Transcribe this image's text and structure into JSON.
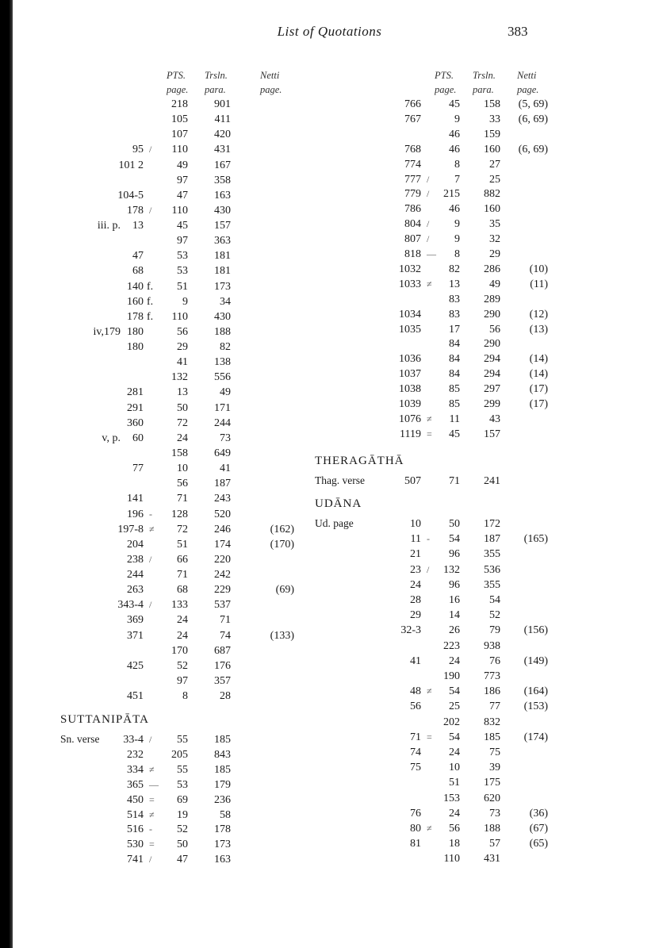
{
  "header": {
    "title": "List of Quotations",
    "page_number": "383"
  },
  "column_headers": {
    "pts": [
      "PTS.",
      "page."
    ],
    "trsl": [
      "Trsln.",
      "para."
    ],
    "netti": [
      "Netti",
      "page."
    ]
  },
  "left_rows": [
    [
      "",
      "",
      "",
      "218",
      "901",
      ""
    ],
    [
      "",
      "",
      "",
      "105",
      "411",
      ""
    ],
    [
      "",
      "",
      "",
      "107",
      "420",
      ""
    ],
    [
      "",
      "95",
      "/",
      "110",
      "431",
      ""
    ],
    [
      "",
      "101 2",
      "",
      "49",
      "167",
      ""
    ],
    [
      "",
      "",
      "",
      "97",
      "358",
      ""
    ],
    [
      "",
      "104-5",
      "",
      "47",
      "163",
      ""
    ],
    [
      "",
      "178",
      "/",
      "110",
      "430",
      ""
    ],
    [
      "iii. p.",
      "13",
      "",
      "45",
      "157",
      ""
    ],
    [
      "",
      "",
      "",
      "97",
      "363",
      ""
    ],
    [
      "",
      "47",
      "",
      "53",
      "181",
      ""
    ],
    [
      "",
      "68",
      "",
      "53",
      "181",
      ""
    ],
    [
      "",
      "140",
      "f.",
      "51",
      "173",
      ""
    ],
    [
      "",
      "160",
      "f.",
      "9",
      "34",
      ""
    ],
    [
      "",
      "178",
      "f.",
      "110",
      "430",
      ""
    ],
    [
      "iv,179",
      "180",
      "",
      "56",
      "188",
      ""
    ],
    [
      "",
      "180",
      "",
      "29",
      "82",
      ""
    ],
    [
      "",
      "",
      "",
      "41",
      "138",
      ""
    ],
    [
      "",
      "",
      "",
      "132",
      "556",
      ""
    ],
    [
      "",
      "281",
      "",
      "13",
      "49",
      ""
    ],
    [
      "",
      "291",
      "",
      "50",
      "171",
      ""
    ],
    [
      "",
      "360",
      "",
      "72",
      "244",
      ""
    ],
    [
      "v, p.",
      "60",
      "",
      "24",
      "73",
      ""
    ],
    [
      "",
      "",
      "",
      "158",
      "649",
      ""
    ],
    [
      "",
      "77",
      "",
      "10",
      "41",
      ""
    ],
    [
      "",
      "",
      "",
      "56",
      "187",
      ""
    ],
    [
      "",
      "141",
      "",
      "71",
      "243",
      ""
    ],
    [
      "",
      "196",
      "-",
      "128",
      "520",
      ""
    ],
    [
      "",
      "197-8",
      "≠",
      "72",
      "246",
      "(162)"
    ],
    [
      "",
      "204",
      "",
      "51",
      "174",
      "(170)"
    ],
    [
      "",
      "238",
      "/",
      "66",
      "220",
      ""
    ],
    [
      "",
      "244",
      "",
      "71",
      "242",
      ""
    ],
    [
      "",
      "263",
      "",
      "68",
      "229",
      "(69)"
    ],
    [
      "",
      "343-4",
      "/",
      "133",
      "537",
      ""
    ],
    [
      "",
      "369",
      "",
      "24",
      "71",
      ""
    ],
    [
      "",
      "371",
      "",
      "24",
      "74",
      "(133)"
    ],
    [
      "",
      "",
      "",
      "170",
      "687",
      ""
    ],
    [
      "",
      "425",
      "",
      "52",
      "176",
      ""
    ],
    [
      "",
      "",
      "",
      "97",
      "357",
      ""
    ],
    [
      "",
      "451",
      "",
      "8",
      "28",
      ""
    ]
  ],
  "suttanipata": {
    "heading": "SUTTANIPĀTA",
    "label": "Sn. verse",
    "rows": [
      [
        "33-4",
        "/",
        "55",
        "185",
        ""
      ],
      [
        "232",
        "",
        "205",
        "843",
        ""
      ],
      [
        "334",
        "≠",
        "55",
        "185",
        ""
      ],
      [
        "365",
        "—",
        "53",
        "179",
        ""
      ],
      [
        "450",
        "=",
        "69",
        "236",
        ""
      ],
      [
        "514",
        "≠",
        "19",
        "58",
        ""
      ],
      [
        "516",
        "-",
        "52",
        "178",
        ""
      ],
      [
        "530",
        "=",
        "50",
        "173",
        ""
      ],
      [
        "741",
        "/",
        "47",
        "163",
        ""
      ]
    ]
  },
  "right_rows": [
    [
      "766",
      "",
      "45",
      "158",
      "(5, 69)"
    ],
    [
      "767",
      "",
      "9",
      "33",
      "(6, 69)"
    ],
    [
      "",
      "",
      "46",
      "159",
      ""
    ],
    [
      "768",
      "",
      "46",
      "160",
      "(6, 69)"
    ],
    [
      "774",
      "",
      "8",
      "27",
      ""
    ],
    [
      "777",
      "/",
      "7",
      "25",
      ""
    ],
    [
      "779",
      "/",
      "215",
      "882",
      ""
    ],
    [
      "786",
      "",
      "46",
      "160",
      ""
    ],
    [
      "804",
      "/",
      "9",
      "35",
      ""
    ],
    [
      "807",
      "/",
      "9",
      "32",
      ""
    ],
    [
      "818",
      "—",
      "8",
      "29",
      ""
    ],
    [
      "1032",
      "",
      "82",
      "286",
      "(10)"
    ],
    [
      "1033",
      "≠",
      "13",
      "49",
      "(11)"
    ],
    [
      "",
      "",
      "83",
      "289",
      ""
    ],
    [
      "1034",
      "",
      "83",
      "290",
      "(12)"
    ],
    [
      "1035",
      "",
      "17",
      "56",
      "(13)"
    ],
    [
      "",
      "",
      "84",
      "290",
      ""
    ],
    [
      "1036",
      "",
      "84",
      "294",
      "(14)"
    ],
    [
      "1037",
      "",
      "84",
      "294",
      "(14)"
    ],
    [
      "1038",
      "",
      "85",
      "297",
      "(17)"
    ],
    [
      "1039",
      "",
      "85",
      "299",
      "(17)"
    ],
    [
      "1076",
      "≠",
      "11",
      "43",
      ""
    ],
    [
      "1119",
      "=",
      "45",
      "157",
      ""
    ]
  ],
  "theragatha": {
    "heading": "THERAGĀTHĀ",
    "label": "Thag. verse",
    "rows": [
      [
        "507",
        "",
        "71",
        "241",
        ""
      ]
    ]
  },
  "udana": {
    "heading": "UDĀNA",
    "label": "Ud. page",
    "rows": [
      [
        "10",
        "",
        "50",
        "172",
        ""
      ],
      [
        "11",
        "-",
        "54",
        "187",
        "(165)"
      ],
      [
        "21",
        "",
        "96",
        "355",
        ""
      ],
      [
        "23",
        "/",
        "132",
        "536",
        ""
      ],
      [
        "24",
        "",
        "96",
        "355",
        ""
      ],
      [
        "28",
        "",
        "16",
        "54",
        ""
      ],
      [
        "29",
        "",
        "14",
        "52",
        ""
      ],
      [
        "32-3",
        "",
        "26",
        "79",
        "(156)"
      ],
      [
        "",
        "",
        "223",
        "938",
        ""
      ],
      [
        "41",
        "",
        "24",
        "76",
        "(149)"
      ],
      [
        "",
        "",
        "190",
        "773",
        ""
      ],
      [
        "48",
        "≠",
        "54",
        "186",
        "(164)"
      ],
      [
        "56",
        "",
        "25",
        "77",
        "(153)"
      ],
      [
        "",
        "",
        "202",
        "832",
        ""
      ],
      [
        "71",
        "=",
        "54",
        "185",
        "(174)"
      ],
      [
        "74",
        "",
        "24",
        "75",
        ""
      ],
      [
        "75",
        "",
        "10",
        "39",
        ""
      ],
      [
        "",
        "",
        "51",
        "175",
        ""
      ],
      [
        "",
        "",
        "153",
        "620",
        ""
      ],
      [
        "76",
        "",
        "24",
        "73",
        "(36)"
      ],
      [
        "80",
        "≠",
        "56",
        "188",
        "(67)"
      ],
      [
        "81",
        "",
        "18",
        "57",
        "(65)"
      ],
      [
        "",
        "",
        "110",
        "431",
        ""
      ]
    ]
  }
}
